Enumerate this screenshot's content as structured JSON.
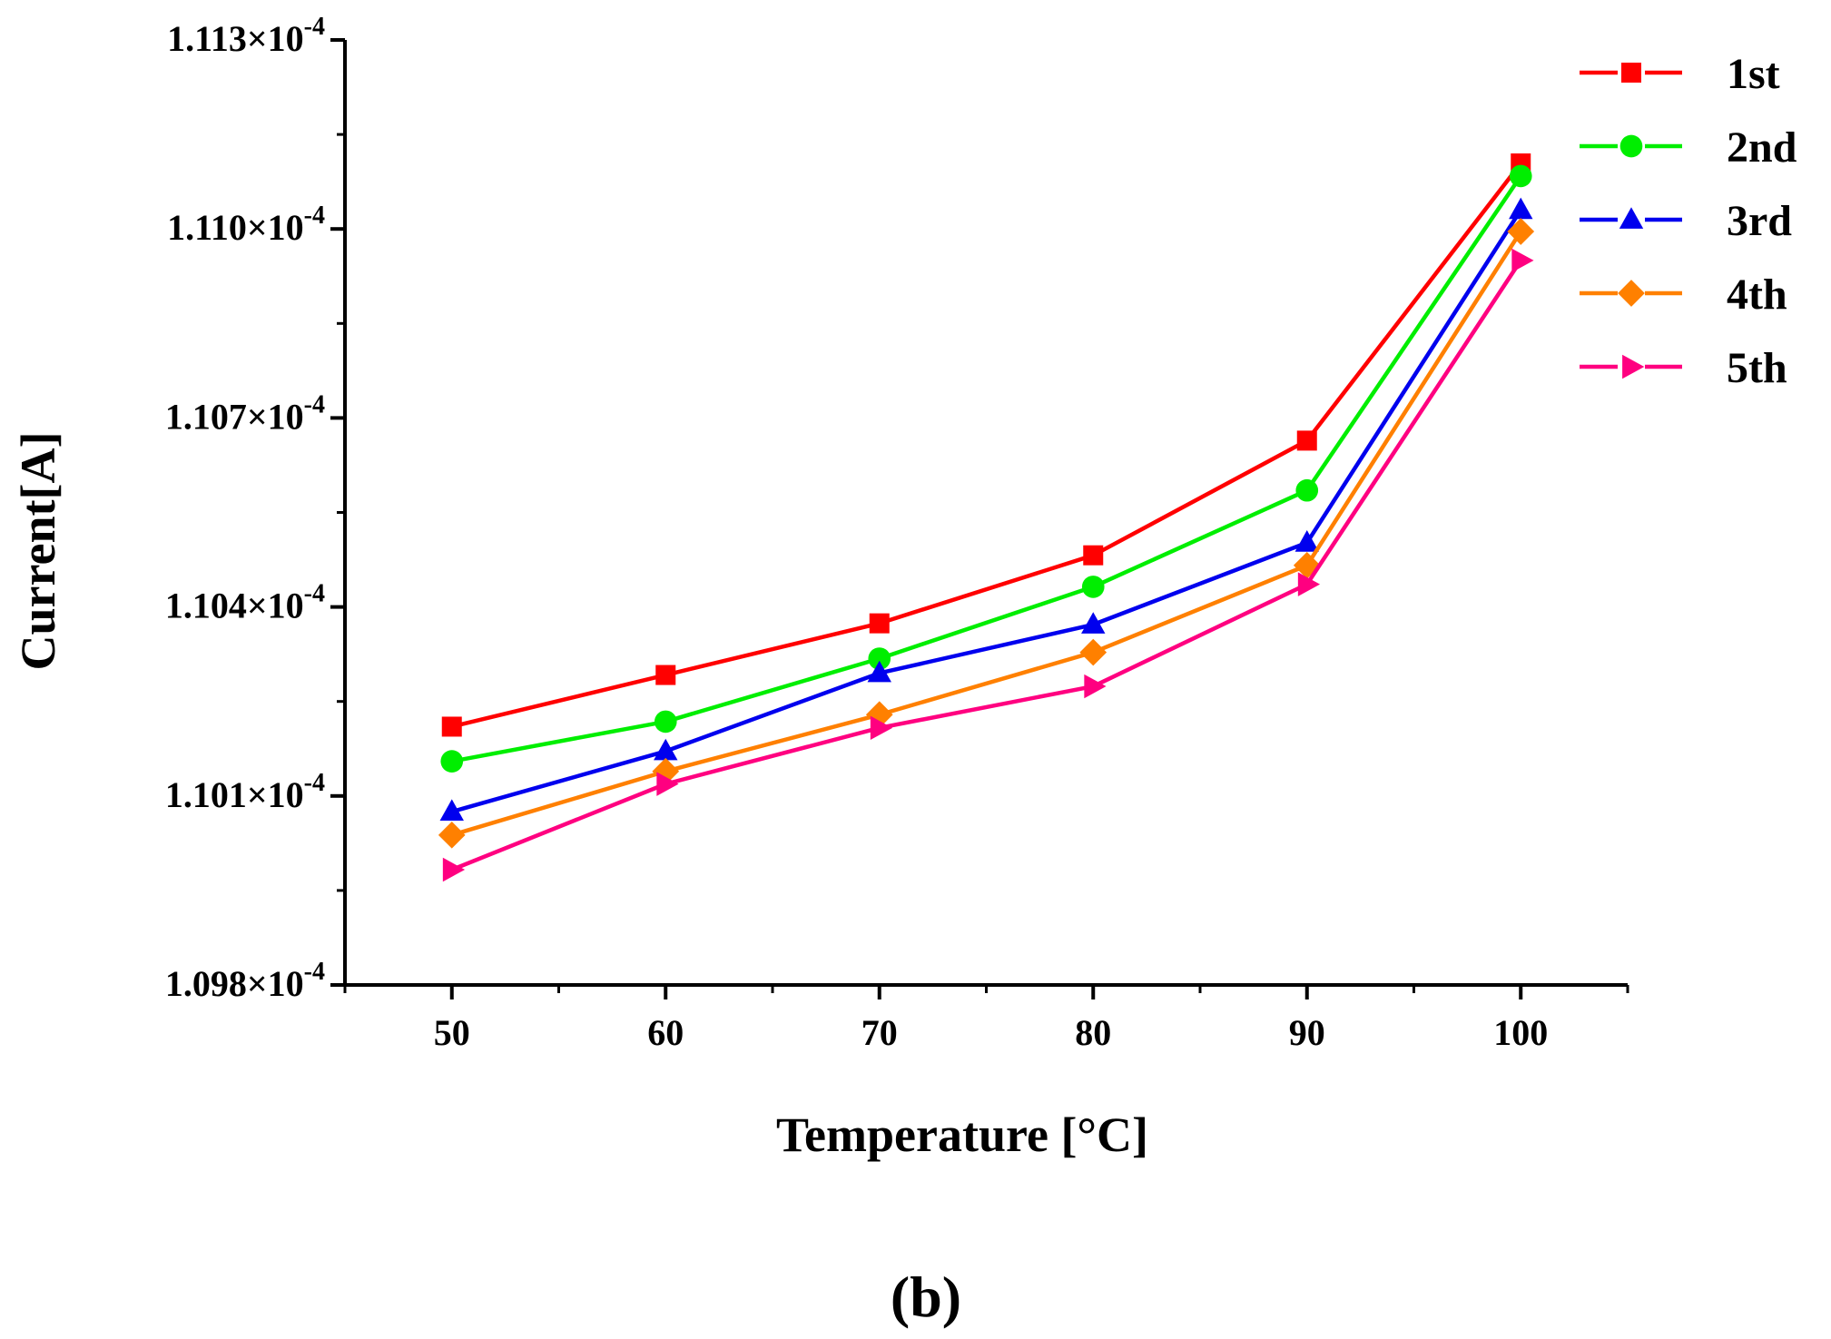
{
  "chart_data": {
    "type": "line",
    "title": "",
    "panel_label": "(b)",
    "xlabel": "Temperature [°C]",
    "ylabel": "Current[A]",
    "x": [
      50,
      60,
      70,
      80,
      90,
      100
    ],
    "x_tick_labels": [
      "50",
      "60",
      "70",
      "80",
      "90",
      "100"
    ],
    "xlim": [
      45,
      105
    ],
    "ylim": [
      0.0001098,
      0.0001113
    ],
    "y_ticks": [
      0.0001098,
      0.0001101,
      0.0001104,
      0.0001107,
      0.000111,
      0.0001113
    ],
    "y_tick_labels": [
      {
        "mantissa": "1.098×10",
        "exponent": "-4"
      },
      {
        "mantissa": "1.101×10",
        "exponent": "-4"
      },
      {
        "mantissa": "1.104×10",
        "exponent": "-4"
      },
      {
        "mantissa": "1.107×10",
        "exponent": "-4"
      },
      {
        "mantissa": "1.110×10",
        "exponent": "-4"
      },
      {
        "mantissa": "1.113×10",
        "exponent": "-4"
      }
    ],
    "grid": false,
    "legend_position": "top-right",
    "series": [
      {
        "name": "1st",
        "marker": "square",
        "color": "#ff0000",
        "values": [
          0.00011021,
          0.000110292,
          0.000110374,
          0.000110482,
          0.000110664,
          0.000111104
        ]
      },
      {
        "name": "2nd",
        "marker": "circle",
        "color": "#00ee00",
        "values": [
          0.000110155,
          0.000110218,
          0.000110318,
          0.000110432,
          0.000110585,
          0.000111084
        ]
      },
      {
        "name": "3rd",
        "marker": "triangle-up",
        "color": "#0000ee",
        "values": [
          0.000110075,
          0.000110171,
          0.000110295,
          0.000110372,
          0.000110502,
          0.00011103
        ]
      },
      {
        "name": "4th",
        "marker": "diamond",
        "color": "#ff8000",
        "values": [
          0.000110038,
          0.000110139,
          0.000110229,
          0.000110328,
          0.000110466,
          0.000110996
        ]
      },
      {
        "name": "5th",
        "marker": "triangle-right",
        "color": "#ff0080",
        "values": [
          0.000109983,
          0.000110119,
          0.000110208,
          0.000110274,
          0.000110436,
          0.00011095
        ]
      }
    ]
  }
}
